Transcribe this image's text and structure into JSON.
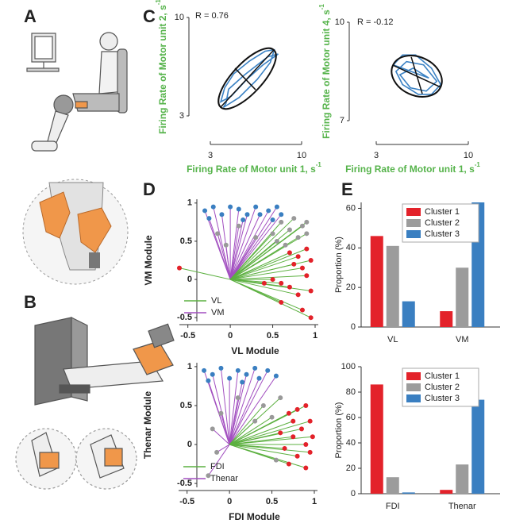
{
  "panel_labels": [
    "A",
    "B",
    "C",
    "D",
    "E"
  ],
  "chart_data": [
    {
      "type": "trajectory",
      "annotation": "R = 0.76",
      "xlabel": "Firing Rate of Motor unit 1, s",
      "ylabel": "Firing Rate of Motor unit 2, s",
      "unit_exponent": "-1",
      "xlim": [
        3,
        10
      ],
      "xticks": [
        3,
        10
      ],
      "ylim": [
        3,
        10
      ],
      "yticks": [
        3,
        10
      ],
      "color": "#3b82c4",
      "x": [
        4.0,
        5.2,
        6.6,
        7.6,
        7.9,
        7.2,
        6.0,
        4.8,
        4.1,
        3.8,
        4.6,
        5.8,
        7.0,
        8.2,
        7.4,
        5.6,
        4.4,
        4.2
      ],
      "y": [
        3.6,
        4.3,
        5.6,
        6.8,
        7.7,
        7.6,
        6.9,
        6.0,
        5.0,
        4.0,
        4.4,
        5.6,
        6.6,
        7.4,
        7.2,
        5.9,
        4.9,
        3.9
      ],
      "ellipse": {
        "major": [
          [
            3.79,
            3.62
          ],
          [
            7.87,
            7.69
          ]
        ],
        "minor": [
          [
            4.89,
            6.39
          ],
          [
            6.47,
            4.86
          ]
        ]
      }
    },
    {
      "type": "trajectory",
      "annotation": "R = -0.12",
      "xlabel": "Firing Rate of Motor unit 1, s",
      "ylabel": "Firing Rate of Motor unit 4, s",
      "unit_exponent": "-1",
      "xlim": [
        3,
        10
      ],
      "xticks": [
        3,
        10
      ],
      "ylim": [
        7,
        10
      ],
      "yticks": [
        7,
        10
      ],
      "color": "#3b82c4",
      "x": [
        4.3,
        5.0,
        6.0,
        7.2,
        7.9,
        7.2,
        6.2,
        5.0,
        4.5,
        5.3,
        6.6,
        7.6,
        6.8,
        5.6,
        4.8,
        5.8,
        7.0
      ],
      "y": [
        8.7,
        9.0,
        9.0,
        8.6,
        8.1,
        7.8,
        7.8,
        8.1,
        8.5,
        8.8,
        8.7,
        8.2,
        7.9,
        8.0,
        8.4,
        8.6,
        8.3
      ],
      "ellipse": {
        "major": [
          [
            4.27,
            8.69
          ],
          [
            7.89,
            8.02
          ]
        ],
        "minor": [
          [
            5.66,
            8.94
          ],
          [
            6.5,
            7.82
          ]
        ]
      }
    },
    {
      "type": "biplot",
      "xlabel": "VL Module",
      "ylabel": "VM Module",
      "xlim": [
        -0.6,
        1
      ],
      "xticks": [
        -0.5,
        0,
        0.5,
        1
      ],
      "ylim": [
        -0.55,
        1.05
      ],
      "yticks": [
        -0.5,
        0,
        0.5,
        1
      ],
      "legend": [
        {
          "name": "VL",
          "color": "#5cb040"
        },
        {
          "name": "VM",
          "color": "#a24fc0"
        }
      ],
      "series": [
        {
          "vector": 1,
          "color": "#3a7fc1",
          "x": [
            -0.3,
            -0.2,
            -0.1,
            0.0,
            0.1,
            0.2,
            0.3,
            0.35,
            0.45,
            0.5,
            0.55,
            0.6,
            -0.25,
            0.15
          ],
          "y": [
            0.9,
            0.95,
            0.85,
            0.95,
            0.92,
            0.85,
            0.95,
            0.85,
            0.9,
            0.78,
            0.95,
            0.85,
            0.8,
            0.78
          ]
        },
        {
          "vector": 1,
          "color": "#999999",
          "x": [
            -0.15,
            0.1,
            0.3,
            -0.05
          ],
          "y": [
            0.6,
            0.7,
            0.55,
            0.45
          ]
        },
        {
          "vector": 0,
          "color": "#999999",
          "x": [
            0.5,
            0.6,
            0.7,
            0.75,
            0.8,
            0.85,
            0.9,
            0.55,
            0.65,
            0.9
          ],
          "y": [
            0.6,
            0.75,
            0.65,
            0.8,
            0.55,
            0.7,
            0.6,
            0.5,
            0.45,
            0.75
          ]
        },
        {
          "vector": 0,
          "color": "#e3222a",
          "x": [
            0.7,
            0.8,
            0.9,
            0.95,
            0.85,
            0.75,
            0.9,
            0.6,
            0.7,
            0.8,
            0.95,
            0.6,
            0.85,
            0.95,
            0.4,
            0.5,
            -0.6
          ],
          "y": [
            0.35,
            0.3,
            0.4,
            0.25,
            0.15,
            0.2,
            0.05,
            -0.05,
            -0.1,
            -0.2,
            -0.15,
            -0.3,
            -0.4,
            -0.5,
            -0.05,
            0.0,
            0.15
          ]
        }
      ]
    },
    {
      "type": "biplot",
      "xlabel": "FDI Module",
      "ylabel": "Thenar Module",
      "xlim": [
        -0.6,
        1
      ],
      "xticks": [
        -0.5,
        0,
        0.5,
        1
      ],
      "ylim": [
        -0.55,
        1.05
      ],
      "yticks": [
        -0.5,
        0,
        0.5,
        1
      ],
      "legend": [
        {
          "name": "FDI",
          "color": "#5cb040"
        },
        {
          "name": "Thenar",
          "color": "#a24fc0"
        }
      ],
      "series": [
        {
          "vector": 1,
          "color": "#3a7fc1",
          "x": [
            -0.3,
            -0.2,
            -0.1,
            0.0,
            0.1,
            0.2,
            0.3,
            0.35,
            0.45,
            0.55,
            -0.25,
            0.15
          ],
          "y": [
            0.95,
            0.9,
            0.98,
            0.85,
            0.95,
            0.9,
            0.98,
            0.85,
            0.95,
            0.88,
            0.82,
            0.8
          ]
        },
        {
          "vector": 1,
          "color": "#999999",
          "x": [
            -0.1,
            -0.2,
            0.1,
            -0.15,
            -0.25
          ],
          "y": [
            0.4,
            0.2,
            0.6,
            -0.1,
            -0.4
          ]
        },
        {
          "vector": 0,
          "color": "#999999",
          "x": [
            0.4,
            0.5,
            0.3,
            0.55,
            0.6
          ],
          "y": [
            0.5,
            0.35,
            0.3,
            -0.2,
            0.6
          ]
        },
        {
          "vector": 0,
          "color": "#e3222a",
          "x": [
            0.7,
            0.8,
            0.9,
            0.95,
            0.85,
            0.75,
            0.9,
            0.65,
            0.8,
            0.95,
            0.7,
            0.9,
            0.6,
            0.75,
            0.98
          ],
          "y": [
            0.4,
            0.45,
            0.5,
            0.3,
            0.2,
            0.1,
            0.0,
            -0.05,
            -0.15,
            -0.1,
            -0.25,
            -0.3,
            0.15,
            0.3,
            0.1
          ]
        }
      ]
    },
    {
      "type": "bar",
      "ylabel": "Proportion (%)",
      "categories": [
        "VL",
        "VM"
      ],
      "ylim": [
        0,
        63
      ],
      "yticks": [
        0,
        20,
        40,
        60
      ],
      "series": [
        {
          "name": "Cluster 1",
          "color": "#e3222a",
          "values": [
            46,
            8
          ]
        },
        {
          "name": "Cluster 2",
          "color": "#9c9c9c",
          "values": [
            41,
            30
          ]
        },
        {
          "name": "Cluster 3",
          "color": "#3a7fc1",
          "values": [
            13,
            63
          ]
        }
      ]
    },
    {
      "type": "bar",
      "ylabel": "Proportion (%)",
      "categories": [
        "FDI",
        "Thenar"
      ],
      "ylim": [
        0,
        100
      ],
      "yticks": [
        0,
        20,
        40,
        60,
        80,
        100
      ],
      "series": [
        {
          "name": "Cluster 1",
          "color": "#e3222a",
          "values": [
            86,
            3
          ]
        },
        {
          "name": "Cluster 2",
          "color": "#9c9c9c",
          "values": [
            13,
            23
          ]
        },
        {
          "name": "Cluster 3",
          "color": "#3a7fc1",
          "values": [
            1,
            74
          ]
        }
      ]
    }
  ]
}
